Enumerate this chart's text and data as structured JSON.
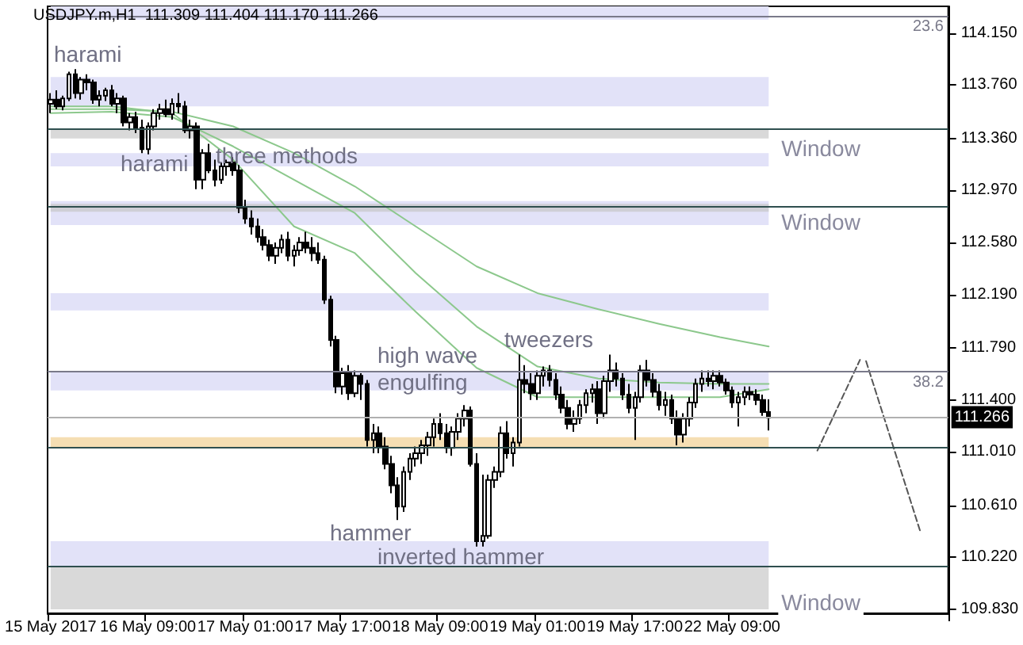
{
  "chart_data": {
    "type": "candlestick",
    "title": "USDJPY.m,H1  111.309 111.404 111.170 111.266",
    "categories": [
      "15 May 2017",
      null,
      null,
      null,
      null,
      null,
      null,
      null,
      null,
      null,
      null,
      null,
      null,
      null,
      null,
      null,
      "16 May 09:00",
      null,
      null,
      null,
      null,
      null,
      null,
      null,
      null,
      null,
      null,
      null,
      null,
      null,
      null,
      null,
      "17 May 01:00",
      null,
      null,
      null,
      null,
      null,
      null,
      null,
      null,
      null,
      null,
      null,
      null,
      null,
      null,
      null,
      "17 May 17:00",
      null,
      null,
      null,
      null,
      null,
      null,
      null,
      null,
      null,
      null,
      null,
      null,
      null,
      null,
      null,
      "18 May 09:00",
      null,
      null,
      null,
      null,
      null,
      null,
      null,
      null,
      null,
      null,
      null,
      null,
      null,
      null,
      null,
      "19 May 01:00",
      null,
      null,
      null,
      null,
      null,
      null,
      null,
      null,
      null,
      null,
      null,
      null,
      null,
      null,
      null,
      "19 May 17:00",
      null,
      null,
      null,
      null,
      null,
      null,
      null,
      null,
      null,
      null,
      null,
      null,
      null,
      null,
      null,
      "22 May 09:00",
      null,
      null,
      null,
      null,
      null,
      null,
      null,
      null,
      null,
      null,
      null,
      null,
      null,
      null,
      null,
      null,
      null,
      null,
      null,
      null,
      null,
      null,
      null,
      null,
      null,
      null,
      null,
      null,
      null,
      null,
      null,
      null,
      null,
      null,
      null
    ],
    "ohlc": [
      [
        113.62,
        113.7,
        113.55,
        113.65
      ],
      [
        113.65,
        113.72,
        113.58,
        113.6
      ],
      [
        113.6,
        113.68,
        113.57,
        113.66
      ],
      [
        113.66,
        113.86,
        113.64,
        113.84
      ],
      [
        113.84,
        113.88,
        113.66,
        113.7
      ],
      [
        113.7,
        113.82,
        113.65,
        113.8
      ],
      [
        113.8,
        113.84,
        113.72,
        113.78
      ],
      [
        113.78,
        113.8,
        113.62,
        113.65
      ],
      [
        113.65,
        113.72,
        113.6,
        113.68
      ],
      [
        113.68,
        113.74,
        113.64,
        113.72
      ],
      [
        113.72,
        113.76,
        113.6,
        113.62
      ],
      [
        113.62,
        113.7,
        113.55,
        113.66
      ],
      [
        113.66,
        113.68,
        113.45,
        113.48
      ],
      [
        113.48,
        113.55,
        113.42,
        113.52
      ],
      [
        113.52,
        113.56,
        113.4,
        113.44
      ],
      [
        113.44,
        113.5,
        113.25,
        113.28
      ],
      [
        113.28,
        113.48,
        113.24,
        113.45
      ],
      [
        113.45,
        113.58,
        113.42,
        113.55
      ],
      [
        113.55,
        113.62,
        113.5,
        113.58
      ],
      [
        113.58,
        113.65,
        113.52,
        113.54
      ],
      [
        113.54,
        113.66,
        113.5,
        113.62
      ],
      [
        113.62,
        113.7,
        113.55,
        113.6
      ],
      [
        113.6,
        113.64,
        113.4,
        113.42
      ],
      [
        113.42,
        113.5,
        113.36,
        113.45
      ],
      [
        113.45,
        113.48,
        112.98,
        113.05
      ],
      [
        113.05,
        113.28,
        112.98,
        113.25
      ],
      [
        113.25,
        113.32,
        113.1,
        113.12
      ],
      [
        113.12,
        113.2,
        113.0,
        113.05
      ],
      [
        113.05,
        113.18,
        113.02,
        113.15
      ],
      [
        113.15,
        113.2,
        113.08,
        113.18
      ],
      [
        113.18,
        113.22,
        113.08,
        113.12
      ],
      [
        113.12,
        113.16,
        112.8,
        112.84
      ],
      [
        112.84,
        112.9,
        112.72,
        112.76
      ],
      [
        112.76,
        112.82,
        112.64,
        112.7
      ],
      [
        112.7,
        112.76,
        112.58,
        112.62
      ],
      [
        112.62,
        112.68,
        112.52,
        112.56
      ],
      [
        112.56,
        112.6,
        112.44,
        112.48
      ],
      [
        112.48,
        112.58,
        112.42,
        112.54
      ],
      [
        112.54,
        112.64,
        112.5,
        112.6
      ],
      [
        112.6,
        112.66,
        112.44,
        112.48
      ],
      [
        112.48,
        112.56,
        112.4,
        112.52
      ],
      [
        112.52,
        112.62,
        112.48,
        112.58
      ],
      [
        112.58,
        112.66,
        112.5,
        112.54
      ],
      [
        112.54,
        112.62,
        112.44,
        112.5
      ],
      [
        112.5,
        112.58,
        112.42,
        112.45
      ],
      [
        112.45,
        112.48,
        112.12,
        112.15
      ],
      [
        112.15,
        112.18,
        111.8,
        111.85
      ],
      [
        111.85,
        111.88,
        111.45,
        111.5
      ],
      [
        111.5,
        111.64,
        111.44,
        111.6
      ],
      [
        111.6,
        111.66,
        111.4,
        111.45
      ],
      [
        111.45,
        111.62,
        111.42,
        111.58
      ],
      [
        111.58,
        111.6,
        111.4,
        111.52
      ],
      [
        111.52,
        111.55,
        111.05,
        111.1
      ],
      [
        111.1,
        111.22,
        111.0,
        111.15
      ],
      [
        111.15,
        111.2,
        111.0,
        111.05
      ],
      [
        111.05,
        111.12,
        110.88,
        110.92
      ],
      [
        110.92,
        110.98,
        110.7,
        110.76
      ],
      [
        110.76,
        110.82,
        110.5,
        110.6
      ],
      [
        110.6,
        110.9,
        110.56,
        110.86
      ],
      [
        110.86,
        111.0,
        110.8,
        110.96
      ],
      [
        110.96,
        111.05,
        110.9,
        111.0
      ],
      [
        111.0,
        111.1,
        110.92,
        111.06
      ],
      [
        111.06,
        111.16,
        110.98,
        111.12
      ],
      [
        111.12,
        111.26,
        111.05,
        111.22
      ],
      [
        111.22,
        111.3,
        111.1,
        111.15
      ],
      [
        111.15,
        111.22,
        111.0,
        111.04
      ],
      [
        111.04,
        111.2,
        110.98,
        111.16
      ],
      [
        111.16,
        111.3,
        111.1,
        111.26
      ],
      [
        111.26,
        111.36,
        111.2,
        111.32
      ],
      [
        111.32,
        111.35,
        110.9,
        110.92
      ],
      [
        110.92,
        111.0,
        110.3,
        110.34
      ],
      [
        110.34,
        110.84,
        110.3,
        110.38
      ],
      [
        110.38,
        110.84,
        110.36,
        110.8
      ],
      [
        110.8,
        110.9,
        110.74,
        110.86
      ],
      [
        110.86,
        111.2,
        110.82,
        111.15
      ],
      [
        111.15,
        111.24,
        110.96,
        111.0
      ],
      [
        111.0,
        111.12,
        110.9,
        111.08
      ],
      [
        111.08,
        111.74,
        111.05,
        111.55
      ],
      [
        111.55,
        111.66,
        111.45,
        111.52
      ],
      [
        111.52,
        111.6,
        111.4,
        111.45
      ],
      [
        111.45,
        111.62,
        111.4,
        111.58
      ],
      [
        111.58,
        111.65,
        111.5,
        111.62
      ],
      [
        111.62,
        111.66,
        111.5,
        111.55
      ],
      [
        111.55,
        111.6,
        111.4,
        111.44
      ],
      [
        111.44,
        111.5,
        111.3,
        111.34
      ],
      [
        111.34,
        111.4,
        111.18,
        111.22
      ],
      [
        111.22,
        111.32,
        111.16,
        111.26
      ],
      [
        111.26,
        111.4,
        111.22,
        111.36
      ],
      [
        111.36,
        111.48,
        111.3,
        111.45
      ],
      [
        111.45,
        111.52,
        111.38,
        111.48
      ],
      [
        111.48,
        111.54,
        111.22,
        111.3
      ],
      [
        111.3,
        111.58,
        111.26,
        111.54
      ],
      [
        111.54,
        111.74,
        111.46,
        111.62
      ],
      [
        111.62,
        111.68,
        111.5,
        111.56
      ],
      [
        111.56,
        111.6,
        111.4,
        111.44
      ],
      [
        111.44,
        111.52,
        111.3,
        111.34
      ],
      [
        111.34,
        111.46,
        111.1,
        111.42
      ],
      [
        111.42,
        111.66,
        111.38,
        111.62
      ],
      [
        111.62,
        111.7,
        111.5,
        111.55
      ],
      [
        111.55,
        111.6,
        111.42,
        111.46
      ],
      [
        111.46,
        111.52,
        111.32,
        111.36
      ],
      [
        111.36,
        111.46,
        111.28,
        111.4
      ],
      [
        111.4,
        111.44,
        111.22,
        111.26
      ],
      [
        111.26,
        111.32,
        111.06,
        111.14
      ],
      [
        111.14,
        111.3,
        111.08,
        111.26
      ],
      [
        111.26,
        111.42,
        111.2,
        111.38
      ],
      [
        111.38,
        111.56,
        111.34,
        111.52
      ],
      [
        111.52,
        111.62,
        111.46,
        111.56
      ],
      [
        111.56,
        111.62,
        111.5,
        111.54
      ],
      [
        111.54,
        111.62,
        111.48,
        111.58
      ],
      [
        111.58,
        111.62,
        111.5,
        111.53
      ],
      [
        111.53,
        111.56,
        111.44,
        111.47
      ],
      [
        111.47,
        111.5,
        111.34,
        111.38
      ],
      [
        111.38,
        111.46,
        111.2,
        111.42
      ],
      [
        111.42,
        111.5,
        111.36,
        111.46
      ],
      [
        111.46,
        111.5,
        111.4,
        111.44
      ],
      [
        111.44,
        111.48,
        111.36,
        111.4
      ],
      [
        111.4,
        111.44,
        111.28,
        111.309
      ],
      [
        111.309,
        111.404,
        111.17,
        111.266
      ],
      null,
      null,
      null,
      null,
      null,
      null,
      null,
      null,
      null,
      null,
      null,
      null,
      null,
      null,
      null,
      null,
      null,
      null,
      null,
      null,
      null,
      null,
      null,
      null,
      null,
      null,
      null,
      null,
      null
    ],
    "series": [
      {
        "type": "line",
        "color": "#8cc88c",
        "values": [
          113.58,
          null,
          null,
          null,
          null,
          null,
          null,
          null,
          null,
          null,
          113.58,
          null,
          null,
          null,
          null,
          null,
          null,
          null,
          null,
          null,
          113.56,
          null,
          null,
          null,
          null,
          null,
          null,
          null,
          null,
          null,
          113.45,
          null,
          null,
          null,
          null,
          null,
          null,
          null,
          null,
          null,
          113.25,
          null,
          null,
          null,
          null,
          null,
          null,
          null,
          null,
          null,
          113.0,
          null,
          null,
          null,
          null,
          null,
          null,
          null,
          null,
          null,
          112.7,
          null,
          null,
          null,
          null,
          null,
          null,
          null,
          null,
          null,
          112.4,
          null,
          null,
          null,
          null,
          null,
          null,
          null,
          null,
          null,
          112.2,
          null,
          null,
          null,
          null,
          null,
          null,
          null,
          null,
          null,
          112.08,
          null,
          null,
          null,
          null,
          null,
          null,
          null,
          null,
          null,
          111.97,
          null,
          null,
          null,
          null,
          null,
          null,
          null,
          null,
          null,
          111.87,
          null,
          null,
          null,
          null,
          null,
          null,
          null,
          111.8,
          null,
          null,
          null,
          null,
          null,
          null,
          null,
          null,
          null,
          null,
          null,
          null,
          null,
          null,
          null,
          null,
          null,
          null,
          null,
          null,
          null,
          null,
          null,
          null,
          null,
          null,
          null,
          null,
          null
        ]
      },
      {
        "type": "line",
        "color": "#8cc88c",
        "values": [
          113.55,
          null,
          null,
          null,
          null,
          null,
          null,
          null,
          null,
          null,
          113.56,
          null,
          null,
          null,
          null,
          null,
          null,
          null,
          null,
          null,
          113.52,
          null,
          null,
          null,
          null,
          null,
          null,
          null,
          null,
          null,
          113.3,
          null,
          null,
          null,
          null,
          null,
          null,
          null,
          null,
          null,
          113.05,
          null,
          null,
          null,
          null,
          null,
          null,
          null,
          null,
          null,
          112.8,
          null,
          null,
          null,
          null,
          null,
          null,
          null,
          null,
          null,
          112.35,
          null,
          null,
          null,
          null,
          null,
          null,
          null,
          null,
          null,
          111.95,
          null,
          null,
          null,
          null,
          null,
          null,
          null,
          null,
          null,
          111.65,
          null,
          null,
          null,
          null,
          null,
          null,
          null,
          null,
          null,
          111.56,
          null,
          null,
          null,
          null,
          null,
          null,
          null,
          null,
          null,
          111.53,
          null,
          null,
          null,
          null,
          null,
          null,
          null,
          null,
          null,
          111.52,
          null,
          null,
          null,
          null,
          null,
          null,
          null,
          111.52,
          null,
          null,
          null,
          null,
          null,
          null,
          null,
          null,
          null,
          null,
          null,
          null,
          null,
          null,
          null,
          null,
          null,
          null,
          null,
          null,
          null,
          null,
          null,
          null,
          null,
          null,
          null,
          null,
          null
        ]
      },
      {
        "type": "line",
        "color": "#8cc88c",
        "values": [
          113.6,
          null,
          null,
          null,
          null,
          null,
          null,
          null,
          null,
          null,
          113.6,
          null,
          null,
          null,
          null,
          null,
          null,
          null,
          null,
          null,
          113.55,
          null,
          null,
          null,
          null,
          null,
          null,
          null,
          null,
          null,
          113.2,
          null,
          null,
          null,
          null,
          null,
          null,
          null,
          null,
          null,
          112.7,
          null,
          null,
          null,
          null,
          null,
          null,
          null,
          null,
          null,
          112.5,
          null,
          null,
          null,
          null,
          null,
          null,
          null,
          null,
          null,
          112.06,
          null,
          null,
          null,
          null,
          null,
          null,
          null,
          null,
          null,
          111.64,
          null,
          null,
          null,
          null,
          null,
          null,
          null,
          null,
          null,
          111.42,
          null,
          null,
          null,
          null,
          null,
          null,
          null,
          null,
          null,
          111.42,
          null,
          null,
          null,
          null,
          null,
          null,
          null,
          null,
          null,
          111.42,
          null,
          null,
          null,
          null,
          null,
          null,
          null,
          null,
          null,
          111.42,
          null,
          null,
          null,
          null,
          null,
          null,
          null,
          111.48,
          null,
          null,
          null,
          null,
          null,
          null,
          null,
          null,
          null,
          null,
          null,
          null,
          null,
          null,
          null,
          null,
          null,
          null,
          null,
          null,
          null,
          null,
          null,
          null,
          null,
          null,
          null,
          null,
          null
        ]
      },
      {
        "type": "line",
        "color": "#555555",
        "line_style": "dashed",
        "values": [
          null,
          null,
          null,
          null,
          null,
          null,
          null,
          null,
          null,
          null,
          null,
          null,
          null,
          null,
          null,
          null,
          null,
          null,
          null,
          null,
          null,
          null,
          null,
          null,
          null,
          null,
          null,
          null,
          null,
          null,
          null,
          null,
          null,
          null,
          null,
          null,
          null,
          null,
          null,
          null,
          null,
          null,
          null,
          null,
          null,
          null,
          null,
          null,
          null,
          null,
          null,
          null,
          null,
          null,
          null,
          null,
          null,
          null,
          null,
          null,
          null,
          null,
          null,
          null,
          null,
          null,
          null,
          null,
          null,
          null,
          null,
          null,
          null,
          null,
          null,
          null,
          null,
          null,
          null,
          null,
          null,
          null,
          null,
          null,
          null,
          null,
          null,
          null,
          null,
          null,
          null,
          null,
          null,
          null,
          null,
          null,
          null,
          null,
          null,
          null,
          null,
          null,
          null,
          null,
          null,
          null,
          null,
          null,
          null,
          null,
          null,
          null,
          null,
          null,
          null,
          null,
          null,
          null,
          null,
          null,
          null,
          null,
          null,
          null,
          null,
          null,
          111.02,
          null,
          null,
          null,
          null,
          null,
          null,
          111.7,
          null,
          null,
          null,
          null,
          null,
          null,
          null,
          null,
          null,
          null,
          null,
          null,
          null,
          null
        ]
      },
      {
        "type": "line",
        "color": "#555555",
        "line_style": "dashed",
        "values": [
          null,
          null,
          null,
          null,
          null,
          null,
          null,
          null,
          null,
          null,
          null,
          null,
          null,
          null,
          null,
          null,
          null,
          null,
          null,
          null,
          null,
          null,
          null,
          null,
          null,
          null,
          null,
          null,
          null,
          null,
          null,
          null,
          null,
          null,
          null,
          null,
          null,
          null,
          null,
          null,
          null,
          null,
          null,
          null,
          null,
          null,
          null,
          null,
          null,
          null,
          null,
          null,
          null,
          null,
          null,
          null,
          null,
          null,
          null,
          null,
          null,
          null,
          null,
          null,
          null,
          null,
          null,
          null,
          null,
          null,
          null,
          null,
          null,
          null,
          null,
          null,
          null,
          null,
          null,
          null,
          null,
          null,
          null,
          null,
          null,
          null,
          null,
          null,
          null,
          null,
          null,
          null,
          null,
          null,
          null,
          null,
          null,
          null,
          null,
          null,
          null,
          null,
          null,
          null,
          null,
          null,
          null,
          null,
          null,
          null,
          null,
          null,
          null,
          null,
          null,
          null,
          null,
          null,
          null,
          null,
          null,
          null,
          null,
          null,
          null,
          null,
          null,
          null,
          null,
          null,
          null,
          null,
          null,
          null,
          111.69,
          null,
          null,
          null,
          null,
          null,
          null,
          null,
          null,
          110.4,
          null,
          null,
          null,
          null
        ]
      }
    ],
    "ylim": [
      109.8,
      114.35
    ],
    "yticks": [
      {
        "value": 109.83,
        "label": "109.830"
      },
      {
        "value": 110.22,
        "label": "110.220"
      },
      {
        "value": 110.61,
        "label": "110.610"
      },
      {
        "value": 111.01,
        "label": "111.010"
      },
      {
        "value": 111.4,
        "label": "111.400"
      },
      {
        "value": 111.79,
        "label": "111.790"
      },
      {
        "value": 112.19,
        "label": "112.190"
      },
      {
        "value": 112.58,
        "label": "112.580"
      },
      {
        "value": 112.97,
        "label": "112.970"
      },
      {
        "value": 113.36,
        "label": "113.360"
      },
      {
        "value": 113.76,
        "label": "113.760"
      },
      {
        "value": 114.15,
        "label": "114.150"
      }
    ],
    "bands": [
      {
        "axis": "y",
        "from": 114.25,
        "to": 114.35,
        "color": "#e2e2f8"
      },
      {
        "axis": "y",
        "from": 113.6,
        "to": 113.82,
        "color": "#e2e2f8"
      },
      {
        "axis": "y",
        "from": 113.36,
        "to": 113.43,
        "color": "#d9d9d9",
        "label": "Window"
      },
      {
        "axis": "y",
        "from": 113.15,
        "to": 113.25,
        "color": "#e2e2f8"
      },
      {
        "axis": "y",
        "from": 112.71,
        "to": 112.89,
        "color": "#e2e2f8"
      },
      {
        "axis": "y",
        "from": 112.81,
        "to": 112.87,
        "color": "#cfcfd6",
        "label": "Window"
      },
      {
        "axis": "y",
        "from": 112.07,
        "to": 112.2,
        "color": "#e2e2f8"
      },
      {
        "axis": "y",
        "from": 111.47,
        "to": 111.61,
        "color": "#e2e2f8"
      },
      {
        "axis": "y",
        "from": 111.04,
        "to": 111.12,
        "color": "#f5deb3"
      },
      {
        "axis": "y",
        "from": 110.15,
        "to": 110.34,
        "color": "#e2e2f8"
      },
      {
        "axis": "y",
        "from": 109.83,
        "to": 110.15,
        "color": "#d9d9d9",
        "label": "Window"
      }
    ],
    "ref_lines": [
      {
        "axis": "y",
        "value": 114.28,
        "color": "#7a7a8a"
      },
      {
        "axis": "y",
        "value": 113.43,
        "color": "#2f4f4f"
      },
      {
        "axis": "y",
        "value": 112.85,
        "color": "#2f4f4f"
      },
      {
        "axis": "y",
        "value": 111.61,
        "color": "#7a7a8a"
      },
      {
        "axis": "y",
        "value": 111.266,
        "label": "111.266",
        "color": "#b0b0b0"
      },
      {
        "axis": "y",
        "value": 111.04,
        "color": "#2f4f4f"
      },
      {
        "axis": "y",
        "value": 110.15,
        "color": "#2f4f4f"
      }
    ],
    "annotations": [
      "harami",
      "harami",
      "three methods",
      "high wave",
      "engulfing",
      "tweezers",
      "hammer",
      "inverted hammer",
      {
        "text": "23.6",
        "y": 114.28
      },
      {
        "text": "38.2",
        "y": 111.61
      }
    ],
    "grid": false,
    "marker": "none"
  }
}
